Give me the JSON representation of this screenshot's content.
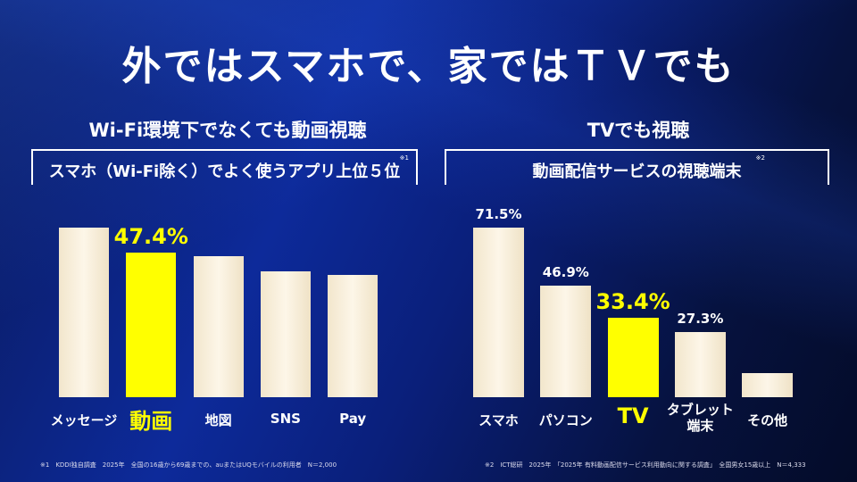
{
  "title": "外ではスマホで、家ではＴＶでも",
  "left": {
    "heading": "Wi-Fi環境下でなくても動画視聴",
    "box_title": "スマホ（Wi-Fi除く）でよく使うアプリ上位５位",
    "note_mark": "※1"
  },
  "right": {
    "heading": "TVでも視聴",
    "box_title": "動画配信サービスの視聴端末",
    "note_mark": "※2"
  },
  "footnotes": [
    "※1　KDDI独自調査　2025年　全国の16歳から69歳までの、auまたはUQモバイルの利用者　N＝2,000",
    "※2　ICT総研　2025年　「2025年 有料動画配信サービス利用動向に関する調査」　全国男女15歳以上　N＝4,333"
  ],
  "colors": {
    "highlight": "#ffff00",
    "bar": "#f8efdc"
  },
  "chart_data": [
    {
      "type": "bar",
      "categories": [
        "メッセージ",
        "動画",
        "地図",
        "SNS",
        "Pay"
      ],
      "values": [
        55.6,
        47.4,
        46.2,
        41.2,
        40.0
      ],
      "labels": [
        "",
        "47.4%",
        "",
        "",
        ""
      ],
      "highlight": "動画",
      "ylim": [
        0,
        60
      ]
    },
    {
      "type": "bar",
      "categories": [
        "スマホ",
        "パソコン",
        "TV",
        "タブレット端末",
        "その他"
      ],
      "category_lines": [
        [
          "スマホ"
        ],
        [
          "パソコン"
        ],
        [
          "TV"
        ],
        [
          "タブレット",
          "端末"
        ],
        [
          "その他"
        ]
      ],
      "values": [
        71.5,
        46.9,
        33.4,
        27.3,
        10
      ],
      "labels": [
        "71.5%",
        "46.9%",
        "33.4%",
        "27.3%",
        ""
      ],
      "highlight": "TV",
      "ylim": [
        0,
        75
      ]
    }
  ]
}
